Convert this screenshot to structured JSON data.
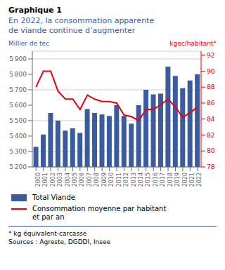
{
  "chart_data": {
    "type": "bar",
    "title": "Graphique 1",
    "subtitle": "En 2022, la consommation apparente\nde viande continue d’augmenter",
    "ylabel": "Millier de tec",
    "y2label": "kgec/habitant*",
    "categories": [
      "2000",
      "2001",
      "2002",
      "2003",
      "2004",
      "2005",
      "2006",
      "2007",
      "2008",
      "2009",
      "2010",
      "2011",
      "2012",
      "2013",
      "2014",
      "2015",
      "2016",
      "2017",
      "2018",
      "2019",
      "2020",
      "2021",
      "2022"
    ],
    "series": [
      {
        "name": "Total Viande",
        "type": "bar",
        "color": "#3A5BA0",
        "values": [
          5330,
          5410,
          5550,
          5500,
          5435,
          5450,
          5420,
          5575,
          5550,
          5540,
          5530,
          5600,
          5530,
          5480,
          5600,
          5700,
          5670,
          5675,
          5850,
          5790,
          5710,
          5760,
          5800
        ]
      },
      {
        "name": "Consommation moyenne par habitant\net par an",
        "type": "line",
        "axis": "y2",
        "color": "#E8000D",
        "values": [
          88.0,
          90.0,
          90.0,
          87.5,
          86.5,
          86.5,
          85.2,
          87.0,
          86.5,
          86.2,
          86.2,
          86.0,
          84.5,
          84.3,
          83.8,
          85.2,
          85.2,
          85.8,
          86.5,
          85.5,
          84.2,
          84.8,
          85.5
        ]
      }
    ],
    "ylim": [
      5200,
      5950
    ],
    "yticks": [
      {
        "value": 5200,
        "label": "5 200"
      },
      {
        "value": 5300,
        "label": "5 300"
      },
      {
        "value": 5400,
        "label": "5 400"
      },
      {
        "value": 5500,
        "label": "5 500"
      },
      {
        "value": 5600,
        "label": "5 600"
      },
      {
        "value": 5700,
        "label": "5 700"
      },
      {
        "value": 5800,
        "label": "5 800"
      },
      {
        "value": 5900,
        "label": "5 900"
      }
    ],
    "y2lim": [
      78,
      92.5
    ],
    "y2ticks": [
      78,
      80,
      82,
      84,
      86,
      88,
      90,
      92
    ],
    "grid": true,
    "annotations": [
      "* kg équivalent-carcasse",
      "Sources : Agreste, DGDDI, Insee"
    ]
  }
}
